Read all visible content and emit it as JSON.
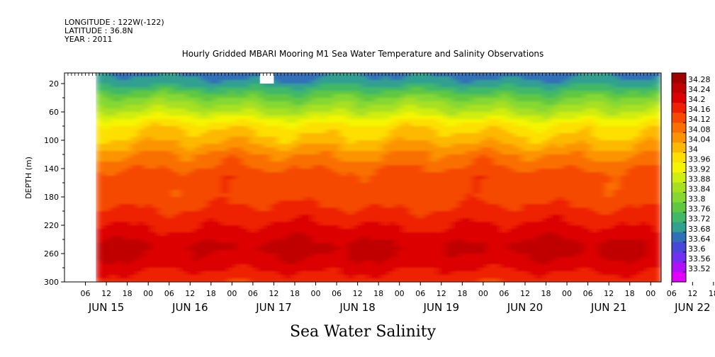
{
  "meta": {
    "longitude": "LONGITUDE : 122W(-122)",
    "latitude": "LATITUDE : 36.8N",
    "year": "YEAR : 2011"
  },
  "footer_label": "Sea Water Salinity",
  "chart_data": {
    "type": "heatmap",
    "title": "Hourly Gridded MBARI Mooring M1 Sea Water Temperature and Salinity Observations",
    "xlabel": "",
    "ylabel": "DEPTH (m)",
    "y_axis": {
      "ticks": [
        20,
        60,
        100,
        140,
        180,
        220,
        260,
        300
      ],
      "range": [
        5,
        300
      ],
      "inverted": true
    },
    "x_axis": {
      "hour_ticks": [
        "06",
        "12",
        "18",
        "00",
        "06",
        "12",
        "18",
        "00",
        "06",
        "12",
        "18",
        "00",
        "06",
        "12",
        "18",
        "00",
        "06",
        "12",
        "18",
        "00",
        "06",
        "12",
        "18",
        "00",
        "06",
        "12",
        "18",
        "00",
        "06",
        "12",
        "18",
        "00",
        "06",
        "12",
        "18",
        "00"
      ],
      "day_labels": [
        "JUN 15",
        "JUN 16",
        "JUN 17",
        "JUN 18",
        "JUN 19",
        "JUN 20",
        "JUN 21",
        "JUN 22"
      ],
      "range": [
        "2011-06-15T00:00",
        "2011-06-22T03:00"
      ],
      "data_start": "2011-06-15T09:00"
    },
    "colorbar": {
      "levels": [
        "34.28",
        "34.24",
        "34.2",
        "34.16",
        "34.12",
        "34.08",
        "34.04",
        "34",
        "33.96",
        "33.92",
        "33.88",
        "33.84",
        "33.8",
        "33.76",
        "33.72",
        "33.68",
        "33.64",
        "33.6",
        "33.56",
        "33.52"
      ],
      "colors": [
        "#a00000",
        "#c00000",
        "#dd0000",
        "#ee2000",
        "#f54a00",
        "#fa7000",
        "#fc9400",
        "#fdb800",
        "#fde000",
        "#f5f500",
        "#d0ee10",
        "#a8e020",
        "#86d830",
        "#60c840",
        "#40b868",
        "#30a090",
        "#3070b8",
        "#4848d8",
        "#7030f0",
        "#b010f8",
        "#e000ff"
      ]
    },
    "salinity_by_depth": [
      {
        "depth": 5,
        "value": 33.66
      },
      {
        "depth": 20,
        "value": 33.7
      },
      {
        "depth": 40,
        "value": 33.8
      },
      {
        "depth": 60,
        "value": 33.88
      },
      {
        "depth": 80,
        "value": 33.98
      },
      {
        "depth": 100,
        "value": 34.02
      },
      {
        "depth": 120,
        "value": 34.08
      },
      {
        "depth": 150,
        "value": 34.14
      },
      {
        "depth": 180,
        "value": 34.14
      },
      {
        "depth": 220,
        "value": 34.2
      },
      {
        "depth": 250,
        "value": 34.25
      },
      {
        "depth": 270,
        "value": 34.23
      },
      {
        "depth": 300,
        "value": 34.17
      }
    ],
    "grid": false,
    "legend": "colorbar-right"
  }
}
